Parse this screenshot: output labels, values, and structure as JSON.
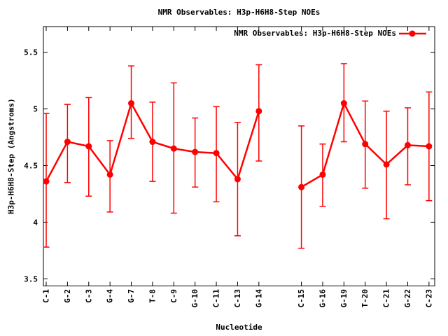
{
  "chart_data": {
    "type": "line",
    "title": "NMR Observables: H3p-H6H8-Step NOEs",
    "xlabel": "Nucleotide",
    "ylabel": "H3p-H6H8-Step (Angstroms)",
    "legend_position": "top-right-inside",
    "grid": false,
    "background": "#ffffff",
    "axis_color": "#000000",
    "categories": [
      "C-1",
      "G-2",
      "C-3",
      "G-4",
      "G-7",
      "T-8",
      "C-9",
      "G-10",
      "C-11",
      "C-13",
      "G-14",
      "C-15",
      "G-16",
      "G-19",
      "T-20",
      "C-21",
      "G-22",
      "C-23"
    ],
    "gap_after": "G-14",
    "xlim": [
      -0.132,
      18.268
    ],
    "ylim": [
      3.437,
      5.727
    ],
    "yticks": [
      3.5,
      4.0,
      4.5,
      5.0,
      5.5
    ],
    "ytick_labels": [
      "3.5",
      "4",
      "4.5",
      "5",
      "5.5"
    ],
    "series": [
      {
        "name": "NMR Observables: H3p-H6H8-Step NOEs",
        "color": "#ff0000",
        "marker": "filled-circle",
        "error_bars": true,
        "points": [
          {
            "label": "C-1",
            "slot": 0,
            "y": 4.36,
            "ylow": 3.78,
            "yhigh": 4.96
          },
          {
            "label": "G-2",
            "slot": 1,
            "y": 4.71,
            "ylow": 4.35,
            "yhigh": 5.04
          },
          {
            "label": "C-3",
            "slot": 2,
            "y": 4.67,
            "ylow": 4.23,
            "yhigh": 5.1
          },
          {
            "label": "G-4",
            "slot": 3,
            "y": 4.42,
            "ylow": 4.09,
            "yhigh": 4.72
          },
          {
            "label": "G-7",
            "slot": 4,
            "y": 5.05,
            "ylow": 4.74,
            "yhigh": 5.38
          },
          {
            "label": "T-8",
            "slot": 5,
            "y": 4.71,
            "ylow": 4.36,
            "yhigh": 5.06
          },
          {
            "label": "C-9",
            "slot": 6,
            "y": 4.65,
            "ylow": 4.08,
            "yhigh": 5.23
          },
          {
            "label": "G-10",
            "slot": 7,
            "y": 4.62,
            "ylow": 4.31,
            "yhigh": 4.92
          },
          {
            "label": "C-11",
            "slot": 8,
            "y": 4.61,
            "ylow": 4.18,
            "yhigh": 5.02
          },
          {
            "label": "C-13",
            "slot": 9,
            "y": 4.38,
            "ylow": 3.88,
            "yhigh": 4.88
          },
          {
            "label": "G-14",
            "slot": 10,
            "y": 4.98,
            "ylow": 4.54,
            "yhigh": 5.39
          },
          {
            "label": "C-15",
            "slot": 12,
            "y": 4.31,
            "ylow": 3.77,
            "yhigh": 4.85
          },
          {
            "label": "G-16",
            "slot": 13,
            "y": 4.42,
            "ylow": 4.14,
            "yhigh": 4.69
          },
          {
            "label": "G-19",
            "slot": 14,
            "y": 5.05,
            "ylow": 4.71,
            "yhigh": 5.4
          },
          {
            "label": "T-20",
            "slot": 15,
            "y": 4.69,
            "ylow": 4.3,
            "yhigh": 5.07
          },
          {
            "label": "C-21",
            "slot": 16,
            "y": 4.51,
            "ylow": 4.03,
            "yhigh": 4.98
          },
          {
            "label": "G-22",
            "slot": 17,
            "y": 4.68,
            "ylow": 4.33,
            "yhigh": 5.01
          },
          {
            "label": "C-23",
            "slot": 18,
            "y": 4.67,
            "ylow": 4.19,
            "yhigh": 5.15
          }
        ]
      }
    ]
  }
}
